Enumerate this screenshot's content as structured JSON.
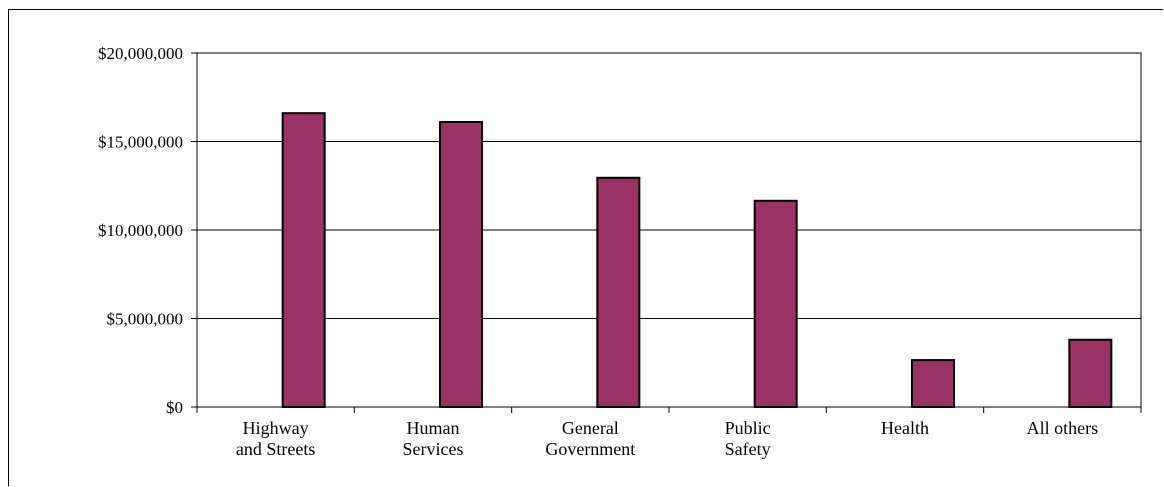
{
  "chart_data": {
    "type": "bar",
    "title": "",
    "xlabel": "",
    "ylabel": "",
    "categories": [
      [
        "Highway",
        "and Streets"
      ],
      [
        "Human",
        "Services"
      ],
      [
        "General",
        "Government"
      ],
      [
        "Public",
        "Safety"
      ],
      [
        "Health"
      ],
      [
        "All others"
      ]
    ],
    "values": [
      16600000,
      16100000,
      12950000,
      11650000,
      2650000,
      3800000
    ],
    "ylim": [
      0,
      20000000
    ],
    "yticks": [
      0,
      5000000,
      10000000,
      15000000,
      20000000
    ],
    "ytick_labels": [
      "$0",
      "$5,000,000",
      "$10,000,000",
      "$15,000,000",
      "$20,000,000"
    ],
    "grid": true,
    "legend": "none",
    "colors": {
      "bar": "#993366",
      "bar_edge": "#000000",
      "grid": "#000000"
    }
  }
}
